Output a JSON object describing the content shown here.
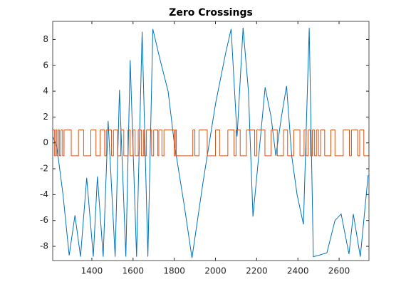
{
  "chart_data": {
    "type": "line",
    "title": "Zero Crossings",
    "xlim": [
      1210,
      2745
    ],
    "ylim": [
      -9.1,
      9.4
    ],
    "xticks": [
      1400,
      1600,
      1800,
      2000,
      2200,
      2400,
      2600
    ],
    "yticks": [
      -8,
      -6,
      -4,
      -2,
      0,
      2,
      4,
      6,
      8
    ],
    "series": [
      {
        "color": "#0072bd",
        "x": [
          1210,
          1230,
          1260,
          1290,
          1318,
          1345,
          1375,
          1407,
          1427,
          1455,
          1479,
          1513,
          1534,
          1565,
          1586,
          1617,
          1644,
          1672,
          1696,
          1730,
          1770,
          1800,
          1850,
          1886,
          1940,
          2000,
          2050,
          2076,
          2105,
          2134,
          2160,
          2182,
          2210,
          2241,
          2270,
          2293,
          2320,
          2345,
          2370,
          2396,
          2427,
          2455,
          2475,
          2500,
          2541,
          2580,
          2610,
          2648,
          2669,
          2703,
          2741
        ],
        "values": [
          0.5,
          -0.3,
          -4,
          -8.7,
          -5.6,
          -8.8,
          -2.7,
          -8.8,
          -2.6,
          -8.8,
          1.7,
          -8.8,
          4.1,
          -8.8,
          6.4,
          -8.8,
          8.6,
          -8.8,
          8.8,
          6.5,
          4,
          0,
          -5,
          -8.9,
          -3,
          3,
          7,
          8.8,
          0.5,
          8.9,
          4,
          -5.7,
          -1,
          4.3,
          2,
          -1,
          2,
          4.4,
          -1,
          -4,
          -6.3,
          8.9,
          -8.8,
          -8.7,
          -8.5,
          -6,
          -5.5,
          -8.6,
          -5.5,
          -8.8,
          -2.5
        ]
      },
      {
        "color": "#d95319",
        "step": true,
        "x": [
          1210,
          1218,
          1224,
          1230,
          1236,
          1242,
          1250,
          1258,
          1265,
          1300,
          1335,
          1360,
          1395,
          1420,
          1440,
          1462,
          1470,
          1495,
          1505,
          1525,
          1540,
          1555,
          1575,
          1585,
          1600,
          1610,
          1625,
          1640,
          1650,
          1655,
          1665,
          1690,
          1700,
          1720,
          1725,
          1740,
          1750,
          1800,
          1805,
          1810,
          1890,
          1900,
          1920,
          1960,
          2000,
          2020,
          2060,
          2090,
          2100,
          2120,
          2150,
          2190,
          2200,
          2240,
          2270,
          2300,
          2330,
          2350,
          2380,
          2410,
          2430,
          2440,
          2450,
          2460,
          2470,
          2480,
          2490,
          2500,
          2510,
          2530,
          2560,
          2580,
          2620,
          2650,
          2660,
          2690,
          2700,
          2720,
          2745
        ],
        "values": [
          1,
          -1,
          1,
          -1,
          1,
          -1,
          1,
          -1,
          1,
          -1,
          1,
          -1,
          1,
          -1,
          1,
          -1,
          1,
          -1,
          1,
          -1,
          1,
          -1,
          1,
          -1,
          1,
          -1,
          1,
          -1,
          1,
          -1,
          1,
          -1,
          1,
          -1,
          1,
          -1,
          1,
          -1,
          1,
          -1,
          1,
          -1,
          1,
          -1,
          1,
          -1,
          1,
          -1,
          1,
          -1,
          1,
          -1,
          1,
          -1,
          1,
          -1,
          1,
          -1,
          1,
          -1,
          1,
          -1,
          1,
          -1,
          1,
          -1,
          1,
          -1,
          1,
          -1,
          1,
          -1,
          1,
          -1,
          1,
          -1,
          1,
          -1,
          1
        ]
      }
    ]
  }
}
